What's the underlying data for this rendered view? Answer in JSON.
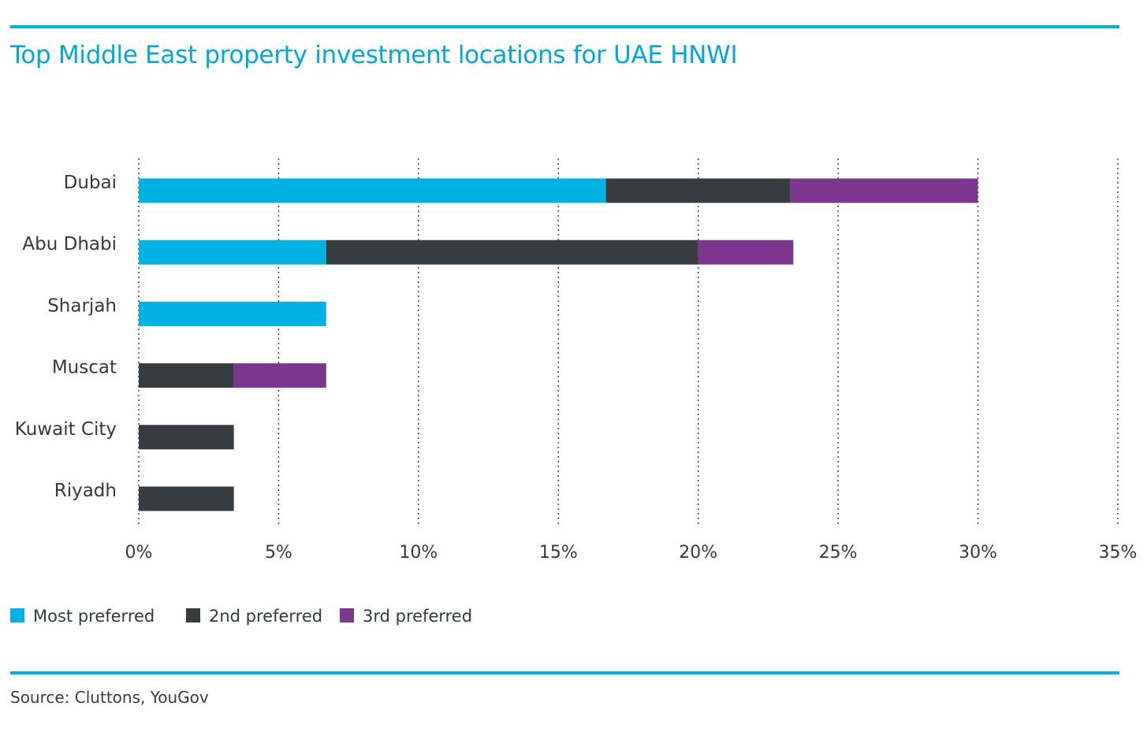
{
  "header": {
    "title": "Top Middle East property investment locations for UAE HNWI"
  },
  "footer": {
    "source": "Source: Cluttons, YouGov"
  },
  "colors": {
    "accent_rule": "#00b0e0",
    "title_text": "#00a9dd",
    "most_preferred": "#00b2e3",
    "second_preferred": "#363c40",
    "third_preferred": "#7d368e",
    "gridline": "#333a3e",
    "text": "#333a3e"
  },
  "chart_data": {
    "type": "bar",
    "orientation": "horizontal",
    "stacked": true,
    "categories": [
      "Dubai",
      "Abu Dhabi",
      "Sharjah",
      "Muscat",
      "Kuwait City",
      "Riyadh"
    ],
    "series": [
      {
        "name": "Most preferred",
        "color": "#00b2e3",
        "values": [
          16.7,
          6.7,
          6.7,
          0,
          0,
          0
        ]
      },
      {
        "name": "2nd preferred",
        "color": "#363c40",
        "values": [
          6.6,
          13.3,
          0,
          3.4,
          3.4,
          3.4
        ]
      },
      {
        "name": "3rd preferred",
        "color": "#7d368e",
        "values": [
          6.7,
          3.4,
          0,
          3.3,
          0,
          0
        ]
      }
    ],
    "xlim": [
      0,
      35
    ],
    "x_ticks": [
      0,
      5,
      10,
      15,
      20,
      25,
      30,
      35
    ],
    "x_tick_labels": [
      "0%",
      "5%",
      "10%",
      "15%",
      "20%",
      "25%",
      "30%",
      "35%"
    ],
    "grid": "vertical dotted",
    "legend_position": "bottom-left",
    "xlabel": "",
    "ylabel": ""
  }
}
